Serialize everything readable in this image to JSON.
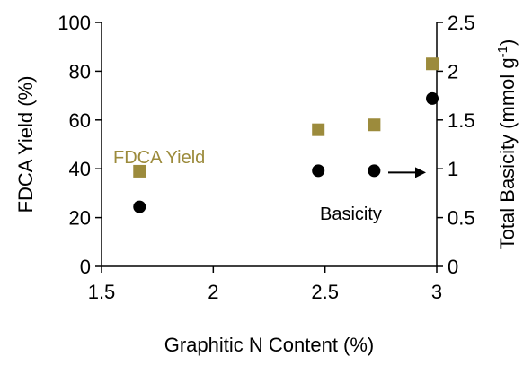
{
  "chart_data": {
    "type": "scatter",
    "title": "",
    "xlabel": "Graphitic N Content (%)",
    "ylabel": "FDCA Yield (%)",
    "y2label": "Total Basicity (mmol g",
    "y2label_superscript": "-1",
    "y2label_suffix": ")",
    "xlim": [
      1.5,
      3.0
    ],
    "ylim": [
      0,
      100
    ],
    "y2lim": [
      0,
      2.5
    ],
    "xticks": [
      "1.5",
      "2",
      "2.5",
      "3"
    ],
    "yticks": [
      "0",
      "20",
      "40",
      "60",
      "80",
      "100"
    ],
    "y2ticks": [
      "0",
      "0.5",
      "1",
      "1.5",
      "2",
      "2.5"
    ],
    "grid": false,
    "legend": "none",
    "series": [
      {
        "name": "FDCA Yield",
        "axis": "left",
        "marker": "square",
        "color": "#9C8B3C",
        "x": [
          1.67,
          2.47,
          2.72,
          2.98
        ],
        "y": [
          39,
          56,
          58,
          83
        ]
      },
      {
        "name": "Basicity",
        "axis": "right",
        "marker": "circle",
        "color": "#000000",
        "x": [
          1.67,
          2.47,
          2.72,
          2.98
        ],
        "y": [
          0.61,
          0.98,
          0.98,
          1.72
        ]
      }
    ],
    "annotations": [
      {
        "text": "FDCA Yield",
        "color": "#9C8B3C"
      },
      {
        "text": "Basicity",
        "color": "#000000"
      }
    ]
  }
}
